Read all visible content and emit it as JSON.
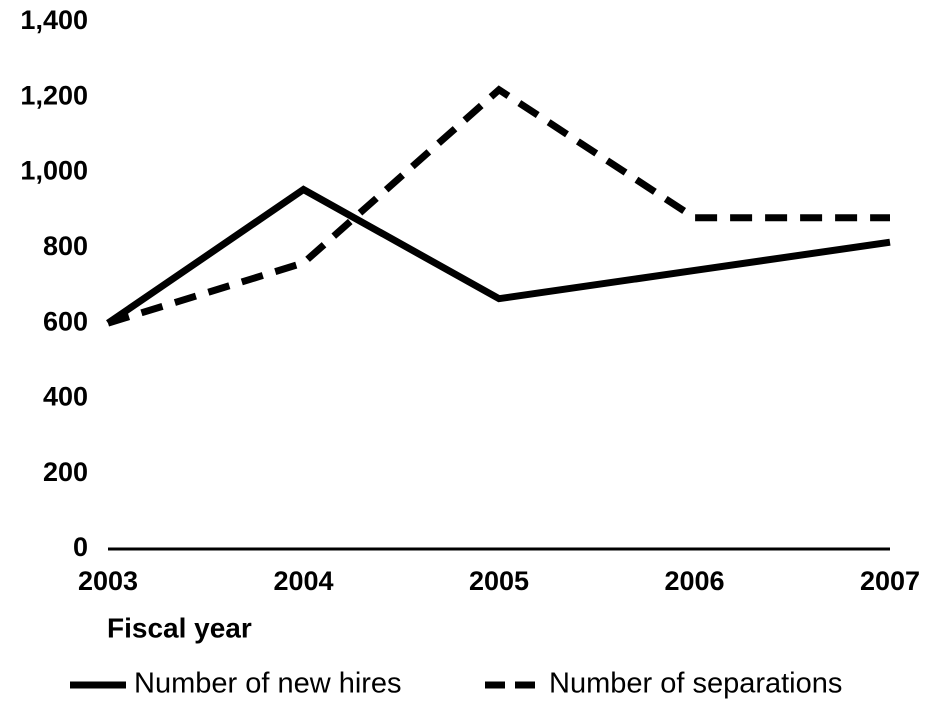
{
  "chart_data": {
    "type": "line",
    "categories": [
      "2003",
      "2004",
      "2005",
      "2006",
      "2007"
    ],
    "x_label": "Fiscal year",
    "series": [
      {
        "name": "Number of new hires",
        "color": "#000000",
        "line_style": "solid",
        "values": [
          600,
          955,
          665,
          740,
          815
        ]
      },
      {
        "name": "Number of separations",
        "color": "#000000",
        "line_style": "dashed",
        "values": [
          600,
          760,
          1220,
          880,
          880
        ]
      }
    ],
    "ylim": [
      0,
      1400
    ],
    "yticks": [
      0,
      200,
      400,
      600,
      800,
      {
        "value": 1000,
        "label": "1,000"
      },
      {
        "value": 1200,
        "label": "1,200"
      },
      {
        "value": 1400,
        "label": "1,400"
      }
    ],
    "grid": false,
    "legend": "bottom"
  }
}
